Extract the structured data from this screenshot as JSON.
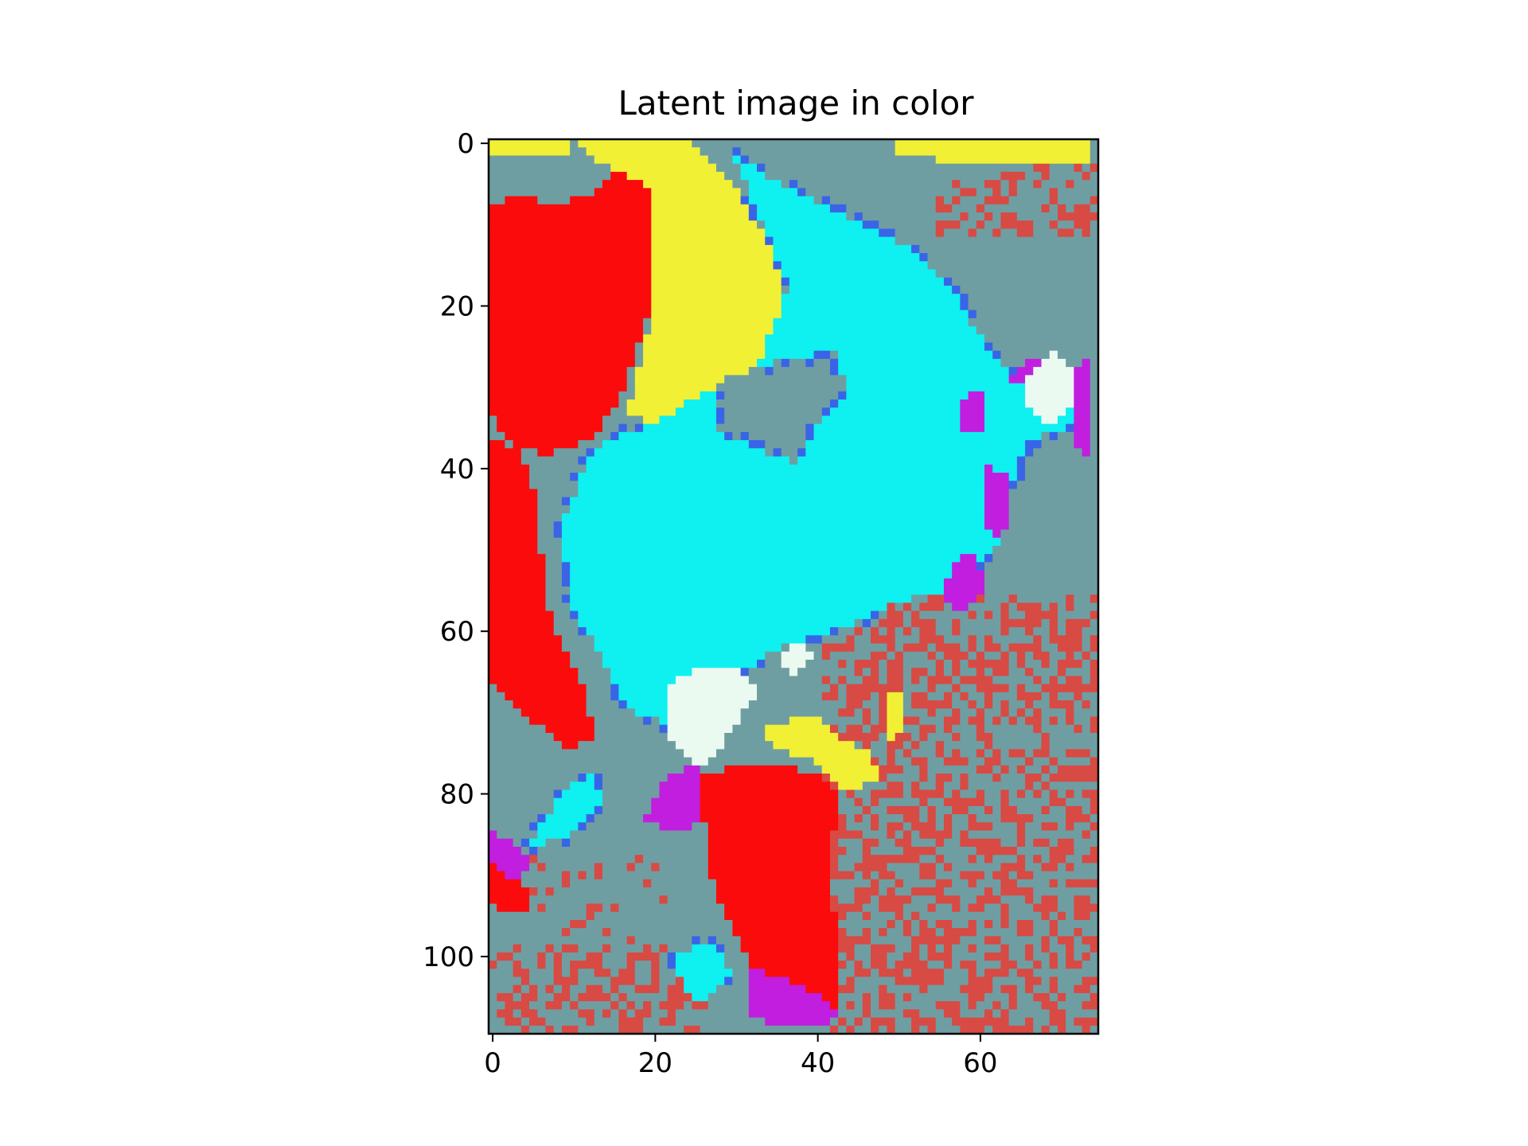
{
  "chart_data": {
    "type": "heatmap",
    "title": "Latent image in color",
    "xlabel": "",
    "ylabel": "",
    "image_size": {
      "columns": 75,
      "rows": 110
    },
    "xlim": [
      -0.5,
      74.5
    ],
    "ylim": [
      109.5,
      -0.5
    ],
    "x_ticks": [
      0,
      20,
      40,
      60
    ],
    "x_tick_labels": [
      "0",
      "20",
      "40",
      "60"
    ],
    "y_ticks": [
      0,
      20,
      40,
      60,
      80,
      100
    ],
    "y_tick_labels": [
      "0",
      "20",
      "40",
      "60",
      "80",
      "100"
    ],
    "grid": false,
    "palette": {
      "background": "#6f9ea2",
      "red": "#fb0b0b",
      "yellow": "#f1f035",
      "cyan": "#0ff0f0",
      "magenta": "#c21ee0",
      "white": "#eafaf0",
      "blue_edge": "#3a64e6",
      "speckle_red": "#d84a44"
    },
    "regions": [
      {
        "color": "yellow",
        "points": [
          [
            10,
            0
          ],
          [
            24,
            0
          ],
          [
            30,
            5
          ],
          [
            35,
            14
          ],
          [
            37,
            22
          ],
          [
            36,
            26
          ],
          [
            30,
            30
          ],
          [
            25,
            33
          ],
          [
            21,
            35
          ],
          [
            17,
            34
          ],
          [
            20,
            22
          ],
          [
            20,
            10
          ],
          [
            17,
            5
          ]
        ]
      },
      {
        "color": "red",
        "points": [
          [
            0,
            8
          ],
          [
            4,
            7
          ],
          [
            8,
            8
          ],
          [
            12,
            7
          ],
          [
            16,
            4
          ],
          [
            20,
            6
          ],
          [
            20,
            20
          ],
          [
            17,
            30
          ],
          [
            13,
            37
          ],
          [
            7,
            39
          ],
          [
            2,
            37
          ],
          [
            0,
            33
          ]
        ]
      },
      {
        "color": "cyan",
        "points": [
          [
            30,
            2
          ],
          [
            37,
            6
          ],
          [
            45,
            10
          ],
          [
            53,
            14
          ],
          [
            58,
            20
          ],
          [
            62,
            27
          ],
          [
            66,
            30
          ],
          [
            72,
            29
          ],
          [
            73,
            35
          ],
          [
            66,
            37
          ],
          [
            64,
            44
          ],
          [
            63,
            50
          ],
          [
            58,
            55
          ],
          [
            50,
            57
          ],
          [
            44,
            60
          ],
          [
            37,
            62
          ],
          [
            32,
            65
          ],
          [
            28,
            67
          ],
          [
            22,
            72
          ],
          [
            17,
            70
          ],
          [
            14,
            64
          ],
          [
            10,
            57
          ],
          [
            9,
            47
          ],
          [
            13,
            38
          ],
          [
            20,
            35
          ],
          [
            27,
            31
          ],
          [
            33,
            28
          ],
          [
            37,
            18
          ]
        ]
      },
      {
        "color": "background",
        "points": [
          [
            28,
            30
          ],
          [
            33,
            28
          ],
          [
            43,
            26
          ],
          [
            44,
            32
          ],
          [
            40,
            36
          ],
          [
            38,
            40
          ],
          [
            33,
            38
          ],
          [
            28,
            36
          ]
        ]
      },
      {
        "color": "red",
        "points": [
          [
            0,
            37
          ],
          [
            4,
            38
          ],
          [
            6,
            45
          ],
          [
            7,
            57
          ],
          [
            9,
            62
          ],
          [
            12,
            68
          ],
          [
            13,
            74
          ],
          [
            10,
            75
          ],
          [
            6,
            72
          ],
          [
            2,
            68
          ],
          [
            0,
            66
          ]
        ]
      },
      {
        "color": "cyan",
        "points": [
          [
            5,
            87
          ],
          [
            8,
            82
          ],
          [
            11,
            79
          ],
          [
            13,
            78
          ],
          [
            14,
            81
          ],
          [
            12,
            84
          ],
          [
            9,
            86
          ]
        ]
      },
      {
        "color": "magenta",
        "points": [
          [
            19,
            84
          ],
          [
            22,
            78
          ],
          [
            26,
            77
          ],
          [
            27,
            83
          ],
          [
            24,
            85
          ]
        ]
      },
      {
        "color": "red",
        "points": [
          [
            26,
            78
          ],
          [
            32,
            77
          ],
          [
            36,
            77
          ],
          [
            40,
            78
          ],
          [
            43,
            80
          ],
          [
            42,
            90
          ],
          [
            43,
            100
          ],
          [
            43,
            107
          ],
          [
            38,
            108
          ],
          [
            34,
            105
          ],
          [
            30,
            97
          ],
          [
            27,
            90
          ]
        ]
      },
      {
        "color": "magenta",
        "points": [
          [
            32,
            102
          ],
          [
            36,
            103
          ],
          [
            40,
            105
          ],
          [
            43,
            107
          ],
          [
            42,
            109
          ],
          [
            36,
            109
          ],
          [
            32,
            108
          ]
        ]
      },
      {
        "color": "cyan",
        "points": [
          [
            23,
            100
          ],
          [
            28,
            99
          ],
          [
            30,
            103
          ],
          [
            27,
            106
          ],
          [
            24,
            105
          ]
        ]
      },
      {
        "color": "red",
        "points": [
          [
            0,
            88
          ],
          [
            3,
            90
          ],
          [
            5,
            93
          ],
          [
            5,
            95
          ],
          [
            2,
            95
          ],
          [
            0,
            94
          ]
        ]
      },
      {
        "color": "magenta",
        "points": [
          [
            0,
            85
          ],
          [
            3,
            86
          ],
          [
            5,
            89
          ],
          [
            4,
            91
          ],
          [
            1,
            90
          ],
          [
            0,
            88
          ]
        ]
      },
      {
        "color": "white",
        "points": [
          [
            22,
            67
          ],
          [
            26,
            65
          ],
          [
            31,
            65
          ],
          [
            33,
            68
          ],
          [
            31,
            71
          ],
          [
            29,
            74
          ],
          [
            27,
            77
          ],
          [
            24,
            76
          ],
          [
            22,
            73
          ]
        ]
      },
      {
        "color": "white",
        "points": [
          [
            36,
            63
          ],
          [
            39,
            62
          ],
          [
            40,
            64
          ],
          [
            38,
            66
          ],
          [
            36,
            65
          ]
        ]
      },
      {
        "color": "white",
        "points": [
          [
            66,
            28
          ],
          [
            70,
            26
          ],
          [
            72,
            28
          ],
          [
            72,
            32
          ],
          [
            70,
            35
          ],
          [
            67,
            34
          ],
          [
            66,
            31
          ]
        ]
      },
      {
        "color": "magenta",
        "points": [
          [
            66,
            27
          ],
          [
            68,
            27
          ],
          [
            66,
            30
          ],
          [
            64,
            30
          ]
        ]
      },
      {
        "color": "magenta",
        "points": [
          [
            72,
            28
          ],
          [
            74,
            27
          ],
          [
            74,
            39
          ],
          [
            72,
            38
          ]
        ]
      },
      {
        "color": "magenta",
        "points": [
          [
            57,
            52
          ],
          [
            60,
            51
          ],
          [
            61,
            55
          ],
          [
            59,
            58
          ],
          [
            56,
            57
          ]
        ]
      },
      {
        "color": "magenta",
        "points": [
          [
            61,
            40
          ],
          [
            64,
            41
          ],
          [
            64,
            48
          ],
          [
            62,
            50
          ],
          [
            61,
            45
          ]
        ]
      },
      {
        "color": "magenta",
        "points": [
          [
            58,
            32
          ],
          [
            61,
            31
          ],
          [
            61,
            36
          ],
          [
            58,
            36
          ]
        ]
      },
      {
        "color": "yellow",
        "points": [
          [
            34,
            72
          ],
          [
            40,
            71
          ],
          [
            44,
            74
          ],
          [
            47,
            75
          ],
          [
            48,
            79
          ],
          [
            44,
            80
          ],
          [
            40,
            76
          ],
          [
            35,
            75
          ]
        ]
      },
      {
        "color": "yellow",
        "points": [
          [
            49,
            68
          ],
          [
            51,
            68
          ],
          [
            51,
            73
          ],
          [
            49,
            74
          ]
        ]
      },
      {
        "color": "yellow",
        "points": [
          [
            50,
            0
          ],
          [
            74,
            0
          ],
          [
            74,
            3
          ],
          [
            60,
            3
          ],
          [
            50,
            2
          ]
        ]
      },
      {
        "color": "yellow",
        "points": [
          [
            0,
            0
          ],
          [
            10,
            0
          ],
          [
            10,
            2
          ],
          [
            0,
            2
          ]
        ]
      }
    ],
    "speckle_zones": [
      {
        "x": [
          41,
          75
        ],
        "y": [
          56,
          110
        ],
        "density": 0.45
      },
      {
        "x": [
          0,
          27
        ],
        "y": [
          99,
          110
        ],
        "density": 0.38
      },
      {
        "x": [
          5,
          22
        ],
        "y": [
          88,
          99
        ],
        "density": 0.18
      },
      {
        "x": [
          55,
          75
        ],
        "y": [
          3,
          12
        ],
        "density": 0.28
      }
    ]
  }
}
